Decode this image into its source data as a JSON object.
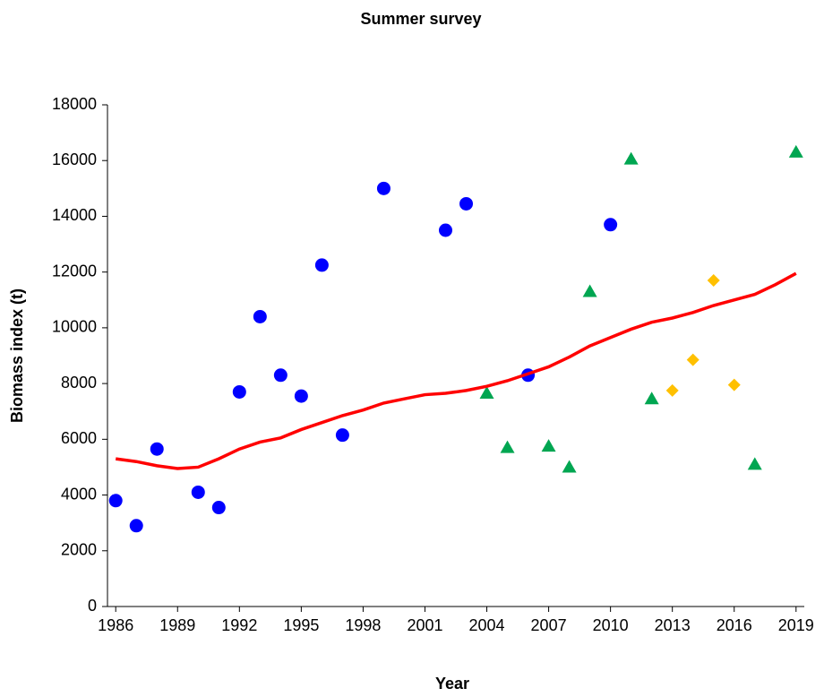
{
  "chart_data": {
    "type": "scatter",
    "title": "Summer survey",
    "x_label": "Year",
    "y_label": "Biomass index (t)",
    "xlim": [
      1985.6,
      2019.4
    ],
    "xticks": [
      1986,
      1989,
      1992,
      1995,
      1998,
      2001,
      2004,
      2007,
      2010,
      2013,
      2016,
      2019
    ],
    "ylim": [
      0,
      18000
    ],
    "yticks": [
      0,
      2000,
      4000,
      6000,
      8000,
      10000,
      12000,
      14000,
      16000,
      18000
    ],
    "grid": false,
    "series": [
      {
        "color": "#0000ff",
        "marker": "circle",
        "x": [
          1986,
          1987,
          1988,
          1990,
          1991,
          1992,
          1993,
          1994,
          1995,
          1996,
          1997,
          1999,
          2002,
          2003,
          2006,
          2010
        ],
        "values": [
          3800,
          2900,
          5650,
          4100,
          3550,
          7700,
          10400,
          8300,
          7550,
          12250,
          6150,
          15000,
          13500,
          14450,
          8300,
          13700
        ]
      },
      {
        "color": "#00a651",
        "marker": "triangle",
        "x": [
          2004,
          2005,
          2007,
          2008,
          2009,
          2011,
          2012,
          2017,
          2019
        ],
        "values": [
          7650,
          5700,
          5750,
          5000,
          11300,
          16050,
          7450,
          5100,
          16300
        ]
      },
      {
        "color": "#ffc000",
        "marker": "diamond",
        "x": [
          2013,
          2014,
          2015,
          2016
        ],
        "values": [
          7750,
          8850,
          11700,
          7950
        ]
      },
      {
        "color": "#ff0000",
        "marker": "line",
        "x": [
          1986,
          1987,
          1988,
          1989,
          1990,
          1991,
          1992,
          1993,
          1994,
          1995,
          1996,
          1997,
          1998,
          1999,
          2000,
          2001,
          2002,
          2003,
          2004,
          2005,
          2006,
          2007,
          2008,
          2009,
          2010,
          2011,
          2012,
          2013,
          2014,
          2015,
          2016,
          2017,
          2018,
          2019
        ],
        "values": [
          5300,
          5200,
          5050,
          4950,
          5000,
          5300,
          5650,
          5900,
          6050,
          6350,
          6600,
          6850,
          7050,
          7300,
          7450,
          7600,
          7650,
          7750,
          7900,
          8100,
          8350,
          8600,
          8950,
          9350,
          9650,
          9950,
          10200,
          10350,
          10550,
          10800,
          11000,
          11200,
          11550,
          11950
        ]
      }
    ]
  }
}
